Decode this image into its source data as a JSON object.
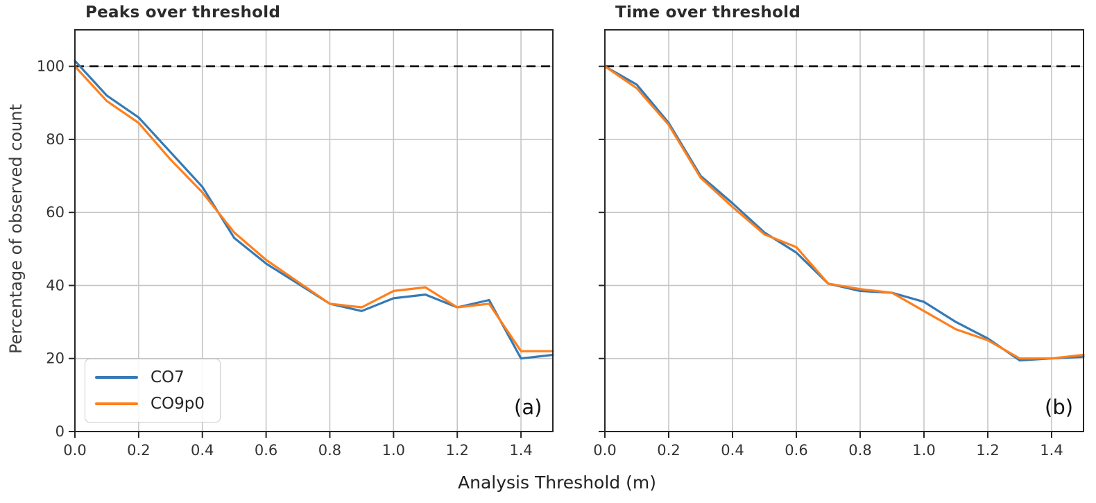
{
  "figure": {
    "ylabel": "Percentage of observed count",
    "xlabel": "Analysis Threshold (m)",
    "colors": {
      "co7": "#357ab5",
      "co9p0": "#ff7f1c",
      "reference_line": "#111111",
      "grid": "#c6c6c6",
      "spine": "#262626",
      "tick_text": "#333333"
    }
  },
  "legend": {
    "position": "lower left",
    "entries": [
      {
        "label": "CO7",
        "color": "#357ab5"
      },
      {
        "label": "CO9p0",
        "color": "#ff7f1c"
      }
    ]
  },
  "chart_data": [
    {
      "type": "line",
      "title": "Peaks over threshold",
      "annotation": "(a)",
      "xlim": [
        0,
        1.5
      ],
      "ylim": [
        0,
        110
      ],
      "grid": true,
      "reference_line_y": 100,
      "xticks": [
        0.0,
        0.2,
        0.4,
        0.6,
        0.8,
        1.0,
        1.2,
        1.4
      ],
      "xtick_labels": [
        "0.0",
        "0.2",
        "0.4",
        "0.6",
        "0.8",
        "1.0",
        "1.2",
        "1.4"
      ],
      "yticks": [
        0,
        20,
        40,
        60,
        80,
        100
      ],
      "ytick_labels": [
        "0",
        "20",
        "40",
        "60",
        "80",
        "100"
      ],
      "x": [
        0.0,
        0.1,
        0.2,
        0.3,
        0.4,
        0.5,
        0.6,
        0.7,
        0.8,
        0.9,
        1.0,
        1.1,
        1.2,
        1.3,
        1.4,
        1.5
      ],
      "series": [
        {
          "name": "CO7",
          "color": "#357ab5",
          "values": [
            101.5,
            92.0,
            86.0,
            76.5,
            67.0,
            53.0,
            46.0,
            40.5,
            35.0,
            33.0,
            36.5,
            37.5,
            34.0,
            36.0,
            20.0,
            21.0
          ]
        },
        {
          "name": "CO9p0",
          "color": "#ff7f1c",
          "values": [
            100.0,
            90.5,
            84.5,
            74.5,
            65.5,
            54.5,
            47.0,
            41.0,
            35.0,
            34.0,
            38.5,
            39.5,
            34.0,
            35.0,
            22.0,
            22.0
          ]
        }
      ]
    },
    {
      "type": "line",
      "title": "Time over threshold",
      "annotation": "(b)",
      "xlim": [
        0,
        1.5
      ],
      "ylim": [
        0,
        110
      ],
      "grid": true,
      "reference_line_y": 100,
      "xticks": [
        0.0,
        0.2,
        0.4,
        0.6,
        0.8,
        1.0,
        1.2,
        1.4
      ],
      "xtick_labels": [
        "0.0",
        "0.2",
        "0.4",
        "0.6",
        "0.8",
        "1.0",
        "1.2",
        "1.4"
      ],
      "yticks": [
        0,
        20,
        40,
        60,
        80,
        100
      ],
      "ytick_labels": [],
      "x": [
        0.0,
        0.1,
        0.2,
        0.3,
        0.4,
        0.5,
        0.6,
        0.7,
        0.8,
        0.9,
        1.0,
        1.1,
        1.2,
        1.3,
        1.4,
        1.5
      ],
      "series": [
        {
          "name": "CO7",
          "color": "#357ab5",
          "values": [
            100.0,
            95.0,
            84.5,
            70.0,
            62.5,
            54.5,
            49.0,
            40.5,
            38.5,
            38.0,
            35.5,
            30.0,
            25.5,
            19.5,
            20.0,
            20.5
          ]
        },
        {
          "name": "CO9p0",
          "color": "#ff7f1c",
          "values": [
            100.0,
            94.0,
            84.0,
            69.5,
            61.5,
            54.0,
            50.5,
            40.5,
            39.0,
            38.0,
            33.0,
            28.0,
            25.0,
            20.0,
            20.0,
            21.0
          ]
        }
      ]
    }
  ]
}
